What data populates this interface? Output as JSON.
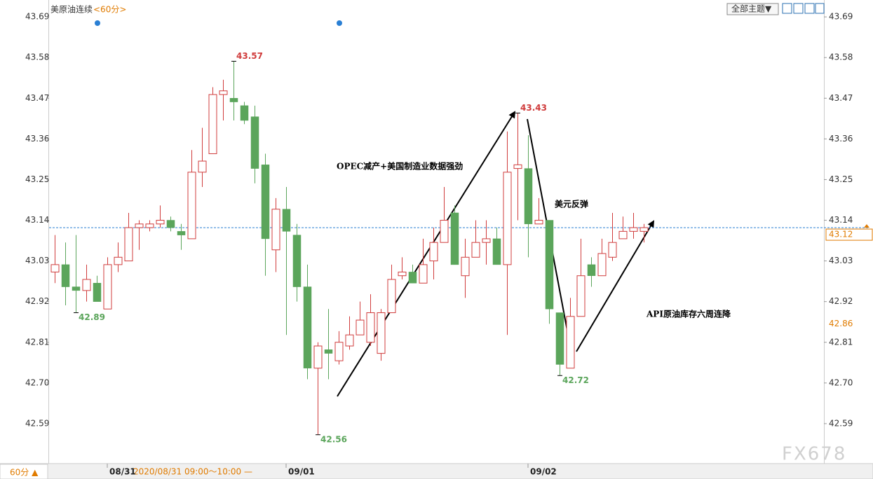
{
  "chart_data": {
    "type": "candlestick",
    "title": "美原油连续",
    "period": "<60分>",
    "theme_menu": "全部主题▼",
    "period_button": "60分 ▲",
    "cursor_time": "2020/08/31 09:00～10:00 —",
    "watermark": "FX678",
    "up_color": "#d03c3c",
    "down_color": "#5ba55b",
    "categories": [
      null,
      null,
      null,
      null,
      null,
      "08/31",
      null,
      null,
      null,
      null,
      null,
      null,
      null,
      null,
      null,
      null,
      null,
      null,
      null,
      null,
      null,
      null,
      "09/01",
      null,
      null,
      null,
      null,
      null,
      null,
      null,
      null,
      null,
      null,
      null,
      null,
      null,
      null,
      null,
      null,
      null,
      null,
      null,
      null,
      null,
      null,
      "09/02",
      null,
      null,
      null,
      null,
      null,
      null,
      null,
      null,
      null,
      null,
      null
    ],
    "open": [
      43.0,
      43.02,
      42.96,
      42.95,
      42.97,
      42.9,
      43.02,
      43.03,
      43.12,
      43.12,
      43.13,
      43.14,
      43.11,
      43.09,
      43.27,
      43.32,
      43.48,
      43.47,
      43.45,
      43.42,
      43.29,
      43.06,
      43.17,
      43.1,
      42.96,
      42.74,
      42.79,
      42.76,
      42.8,
      42.83,
      42.81,
      42.78,
      42.89,
      42.99,
      43.0,
      42.97,
      43.03,
      43.08,
      43.16,
      42.99,
      43.04,
      43.08,
      43.09,
      43.02,
      43.28,
      43.28,
      43.13,
      43.14,
      42.89,
      42.74,
      42.88,
      43.02,
      42.99,
      43.04,
      43.09,
      43.11,
      43.11
    ],
    "high": [
      43.1,
      43.08,
      43.1,
      43.02,
      42.99,
      43.04,
      43.08,
      43.16,
      43.14,
      43.14,
      43.18,
      43.15,
      43.13,
      43.33,
      43.39,
      43.5,
      43.52,
      43.57,
      43.46,
      43.45,
      43.32,
      43.2,
      43.23,
      43.13,
      43.02,
      42.81,
      42.9,
      42.84,
      42.88,
      42.92,
      42.94,
      42.9,
      43.02,
      43.04,
      43.02,
      43.09,
      43.12,
      43.23,
      43.18,
      43.09,
      43.14,
      43.14,
      43.12,
      43.38,
      43.43,
      43.37,
      43.2,
      43.14,
      42.89,
      42.93,
      43.09,
      43.04,
      43.09,
      43.16,
      43.15,
      43.16,
      43.13
    ],
    "low": [
      42.97,
      42.91,
      42.89,
      42.92,
      42.92,
      42.9,
      43.0,
      43.03,
      43.06,
      43.11,
      43.12,
      43.11,
      43.06,
      43.09,
      43.23,
      43.32,
      43.41,
      43.41,
      43.4,
      43.24,
      42.99,
      43.0,
      42.83,
      42.92,
      42.71,
      42.56,
      42.71,
      42.75,
      42.79,
      42.83,
      42.8,
      42.76,
      42.89,
      42.98,
      42.97,
      42.97,
      42.98,
      43.08,
      43.02,
      42.93,
      43.04,
      43.02,
      43.02,
      42.83,
      43.14,
      43.04,
      43.13,
      42.86,
      42.72,
      42.74,
      42.88,
      42.96,
      42.99,
      43.03,
      43.09,
      43.09,
      43.08
    ],
    "close": [
      43.02,
      42.96,
      42.95,
      42.98,
      42.92,
      43.02,
      43.04,
      43.12,
      43.13,
      43.13,
      43.14,
      43.12,
      43.1,
      43.27,
      43.3,
      43.48,
      43.49,
      43.46,
      43.41,
      43.28,
      43.09,
      43.17,
      43.11,
      42.96,
      42.74,
      42.8,
      42.78,
      42.81,
      42.83,
      42.87,
      42.89,
      42.89,
      42.98,
      43.0,
      42.97,
      43.02,
      43.08,
      43.14,
      43.02,
      43.04,
      43.08,
      43.09,
      43.02,
      43.27,
      43.29,
      43.13,
      43.14,
      42.9,
      42.75,
      42.88,
      42.99,
      42.99,
      43.05,
      43.08,
      43.11,
      43.12,
      43.12
    ],
    "ylim": [
      42.48,
      43.73
    ],
    "yticks": [
      43.69,
      43.58,
      43.47,
      43.36,
      43.25,
      43.14,
      43.03,
      42.92,
      42.81,
      {
        "value": 42.7,
        "label": "42.70"
      },
      42.59
    ],
    "last_price": 43.12,
    "reference_price": 42.86,
    "annotations": [
      "OPEC减产+美国制造业数据强劲",
      "美元反弹",
      "API原油库存六周连降"
    ]
  }
}
